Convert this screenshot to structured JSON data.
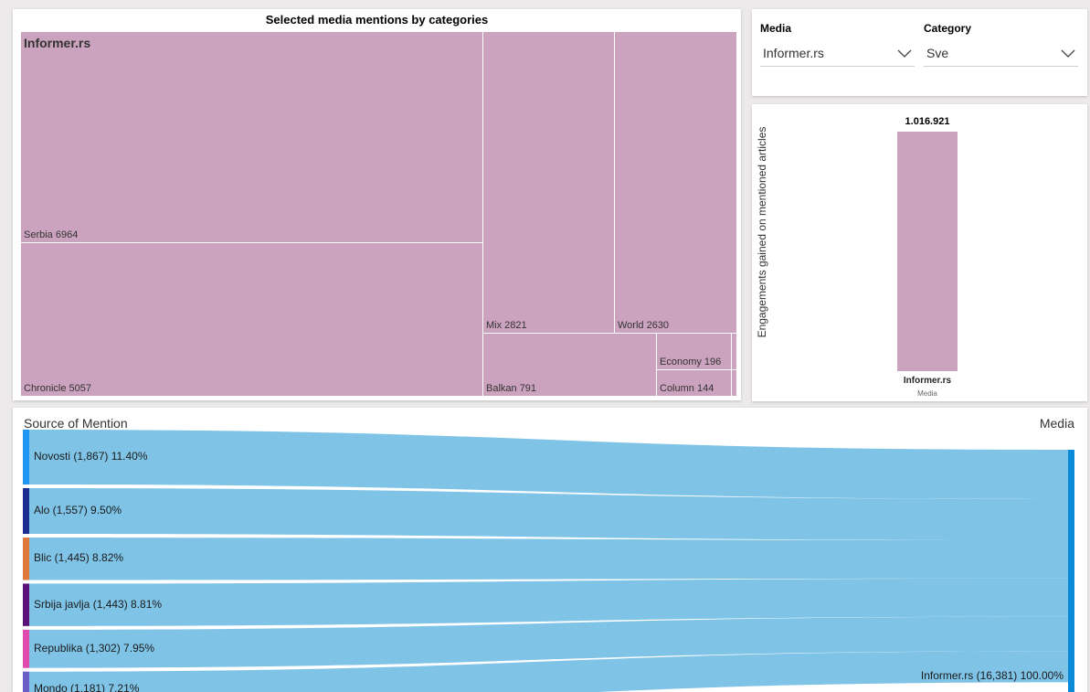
{
  "treemap": {
    "title": "Selected media mentions by categories",
    "group_label": "Informer.rs",
    "tiles": [
      {
        "name": "Serbia",
        "value": 6964
      },
      {
        "name": "Chronicle",
        "value": 5057
      },
      {
        "name": "Mix",
        "value": 2821
      },
      {
        "name": "World",
        "value": 2630
      },
      {
        "name": "Balkan",
        "value": 791
      },
      {
        "name": "Economy",
        "value": 196
      },
      {
        "name": "Column",
        "value": 144
      }
    ]
  },
  "slicers": {
    "media": {
      "title": "Media",
      "value": "Informer.rs"
    },
    "category": {
      "title": "Category",
      "value": "Sve"
    }
  },
  "bar_chart": {
    "y_title": "Engagements gained on mentioned articles",
    "background_text": "",
    "chart_data": {
      "type": "bar",
      "categories": [
        "Informer.rs"
      ],
      "values": [
        1016921
      ],
      "data_labels": [
        "1.016.921"
      ],
      "xlabel": "Media",
      "ylabel": "Engagements gained on mentioned articles",
      "ylim": [
        0,
        1016921
      ],
      "bar_color": "#cba3be"
    }
  },
  "sankey": {
    "left_header": "Source of Mention",
    "right_header": "Media",
    "flow_color": "#7fc4e7",
    "sources": [
      {
        "label": "Novosti (1,867) 11.40%",
        "value": 1867,
        "color": "#2196f3"
      },
      {
        "label": "Alo (1,557) 9.50%",
        "value": 1557,
        "color": "#1c2c8f"
      },
      {
        "label": "Blic (1,445) 8.82%",
        "value": 1445,
        "color": "#e07a3c"
      },
      {
        "label": "Srbija javlja (1,443) 8.81%",
        "value": 1443,
        "color": "#5c1178"
      },
      {
        "label": "Republika (1,302) 7.95%",
        "value": 1302,
        "color": "#e04bb0"
      },
      {
        "label": "Mondo (1,181) 7.21%",
        "value": 1181,
        "color": "#6b5fc7"
      }
    ],
    "target": {
      "label": "Informer.rs (16,381) 100.00%",
      "value": 16381,
      "color": "#0b8ad8"
    }
  }
}
